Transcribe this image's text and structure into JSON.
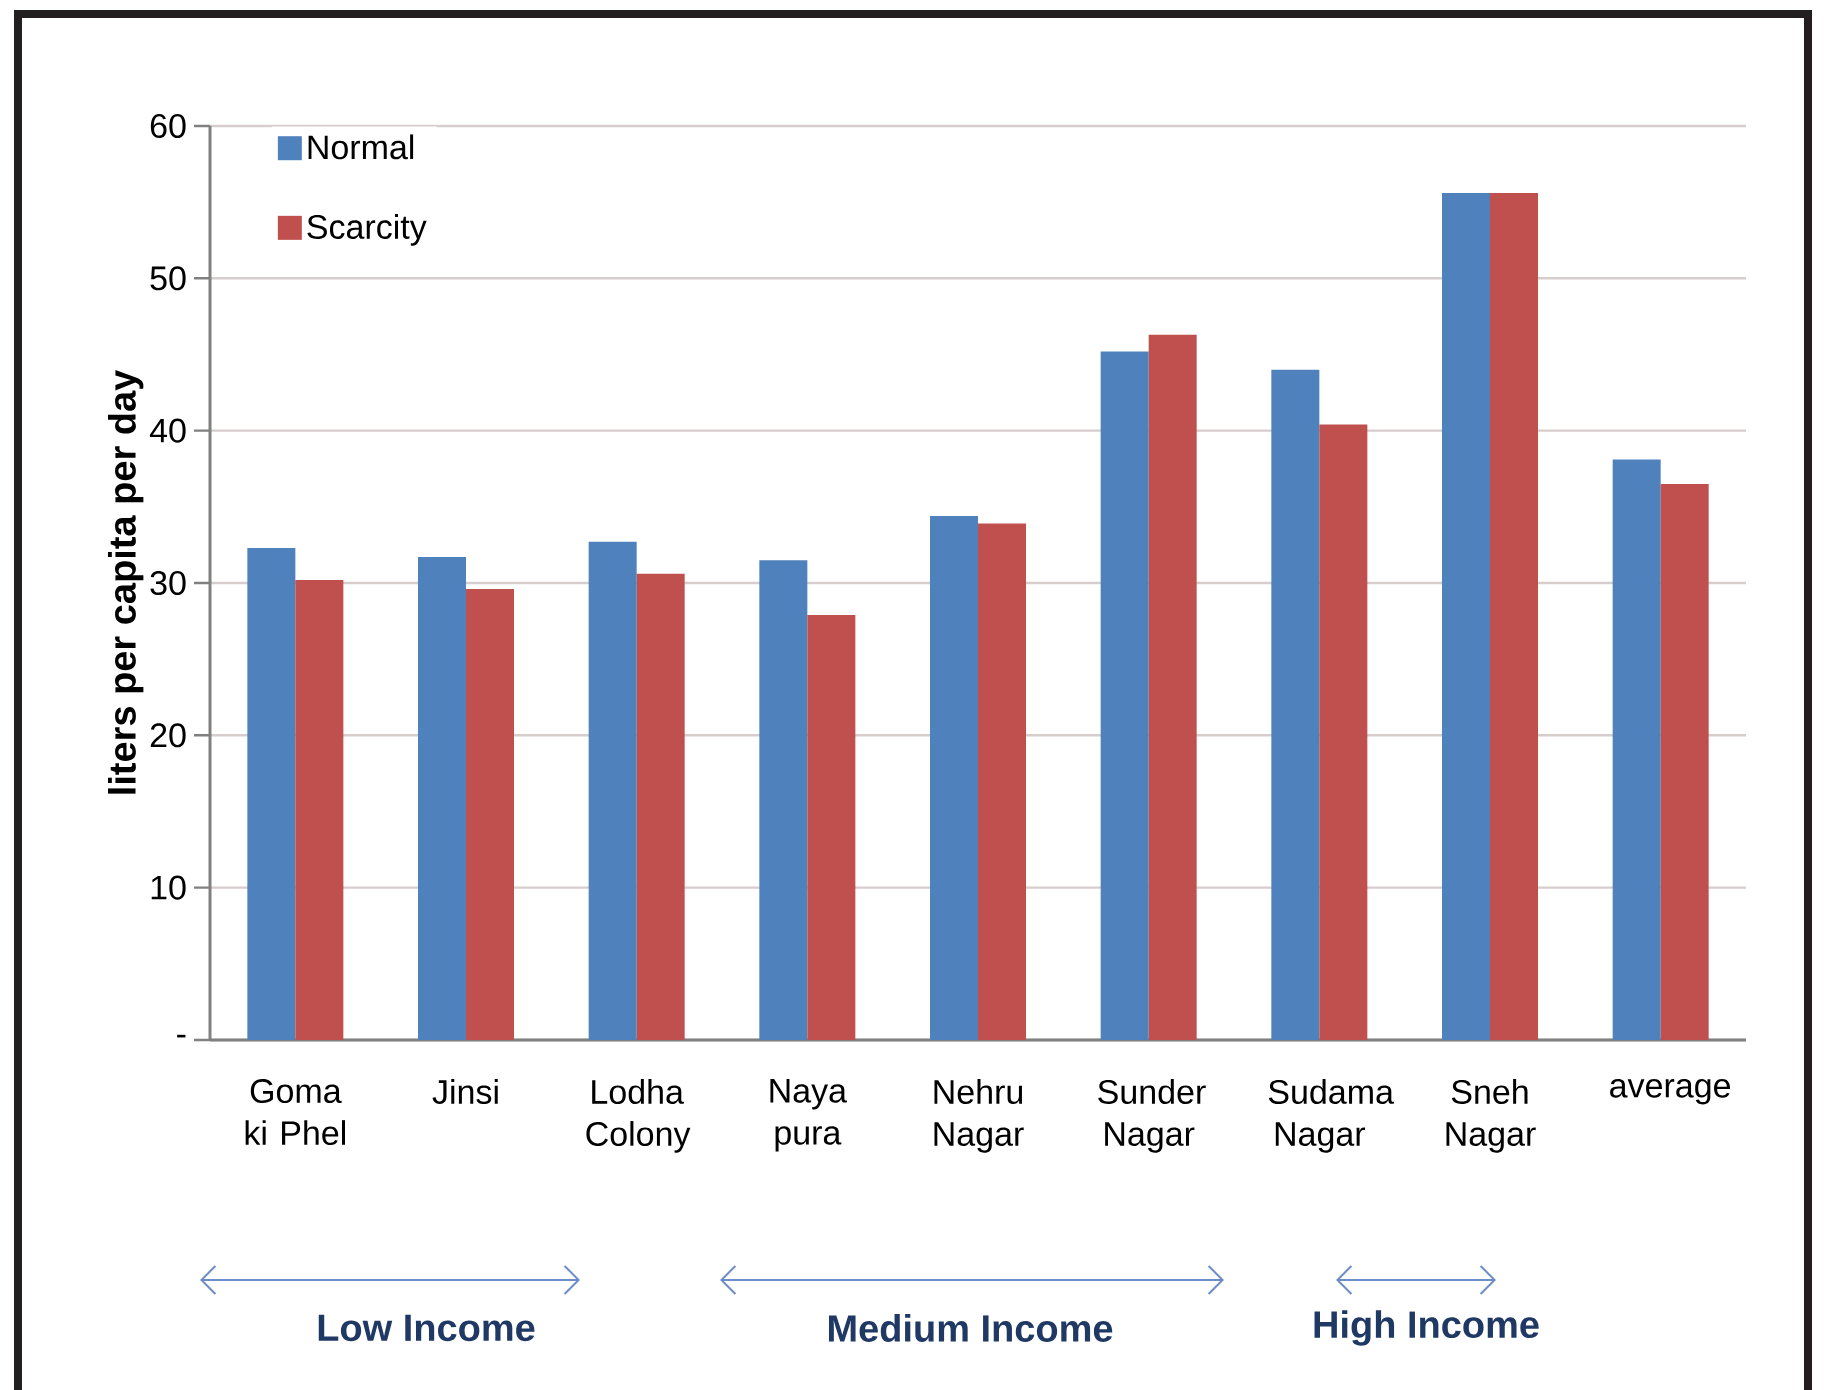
{
  "chart_data": {
    "type": "bar",
    "ylabel": "liters per capita per day",
    "categories": [
      "Goma ki Phel",
      "Jinsi",
      "Lodha Colony",
      "Naya pura",
      "Nehru Nagar",
      "Sunder Nagar",
      "Sudama Nagar",
      "Sneh Nagar",
      "average"
    ],
    "series": [
      {
        "name": "Normal",
        "color": "#4f81bd",
        "values": [
          32.3,
          31.7,
          32.7,
          31.5,
          34.4,
          45.2,
          44.0,
          55.6,
          38.1
        ]
      },
      {
        "name": "Scarcity",
        "color": "#c0504d",
        "values": [
          30.2,
          29.6,
          30.6,
          27.9,
          33.9,
          46.3,
          40.4,
          55.6,
          36.5
        ]
      }
    ],
    "ylim": [
      0,
      60
    ],
    "yticks": [
      {
        "value": 0,
        "label": "-"
      },
      10,
      20,
      30,
      40,
      50,
      60
    ],
    "grid": "y",
    "legend": "top left",
    "annotations": [
      "Low Income",
      "Medium Income",
      "High Income"
    ]
  }
}
